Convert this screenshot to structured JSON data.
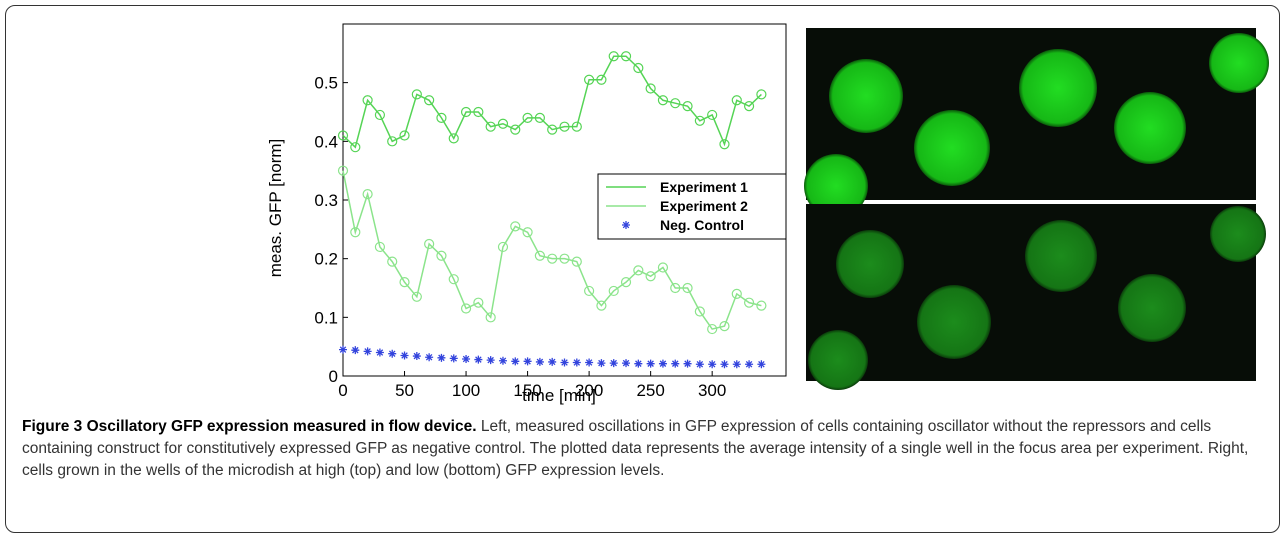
{
  "chart_data": {
    "type": "line",
    "xlabel": "time [min]",
    "ylabel": "meas. GFP [norm]",
    "x": [
      0,
      10,
      20,
      30,
      40,
      50,
      60,
      70,
      80,
      90,
      100,
      110,
      120,
      130,
      140,
      150,
      160,
      170,
      180,
      190,
      200,
      210,
      220,
      230,
      240,
      250,
      260,
      270,
      280,
      290,
      300,
      310,
      320,
      330,
      340
    ],
    "xlim": [
      0,
      360
    ],
    "xticks": [
      0,
      50,
      100,
      150,
      200,
      250,
      300
    ],
    "ylim": [
      0,
      0.6
    ],
    "yticks": [
      0,
      0.1,
      0.2,
      0.3,
      0.4,
      0.5
    ],
    "legend": "center-right",
    "series": [
      {
        "name": "Experiment 1",
        "color": "#55d455",
        "marker": "o",
        "line": true,
        "values": [
          0.41,
          0.39,
          0.47,
          0.445,
          0.4,
          0.41,
          0.48,
          0.47,
          0.44,
          0.405,
          0.45,
          0.45,
          0.425,
          0.43,
          0.42,
          0.44,
          0.44,
          0.42,
          0.425,
          0.425,
          0.505,
          0.505,
          0.545,
          0.545,
          0.525,
          0.49,
          0.47,
          0.465,
          0.46,
          0.435,
          0.445,
          0.395,
          0.47,
          0.46,
          0.48
        ]
      },
      {
        "name": "Experiment 2",
        "color": "#8be48b",
        "marker": "o",
        "line": true,
        "values": [
          0.35,
          0.245,
          0.31,
          0.22,
          0.195,
          0.16,
          0.135,
          0.225,
          0.205,
          0.165,
          0.115,
          0.125,
          0.1,
          0.22,
          0.255,
          0.245,
          0.205,
          0.2,
          0.2,
          0.195,
          0.145,
          0.12,
          0.145,
          0.16,
          0.18,
          0.17,
          0.185,
          0.15,
          0.15,
          0.11,
          0.08,
          0.085,
          0.14,
          0.125,
          0.12
        ]
      },
      {
        "name": "Neg. Control",
        "color": "#3344dd",
        "marker": "*",
        "line": false,
        "values": [
          0.045,
          0.044,
          0.042,
          0.04,
          0.038,
          0.035,
          0.034,
          0.032,
          0.031,
          0.03,
          0.029,
          0.028,
          0.027,
          0.026,
          0.025,
          0.025,
          0.024,
          0.024,
          0.023,
          0.023,
          0.023,
          0.022,
          0.022,
          0.022,
          0.021,
          0.021,
          0.021,
          0.021,
          0.021,
          0.02,
          0.02,
          0.02,
          0.02,
          0.02,
          0.02
        ]
      }
    ]
  },
  "caption": {
    "title": "Figure 3 Oscillatory GFP expression measured in flow device.",
    "body": "Left, measured oscillations in GFP expression of cells containing oscillator without the repressors and cells containing construct for constitutively expressed GFP as negative control. The plotted data represents the average intensity of a single well in the focus area per experiment. Right, cells grown in the wells of the microdish at high (top) and low (bottom) GFP expression levels."
  }
}
